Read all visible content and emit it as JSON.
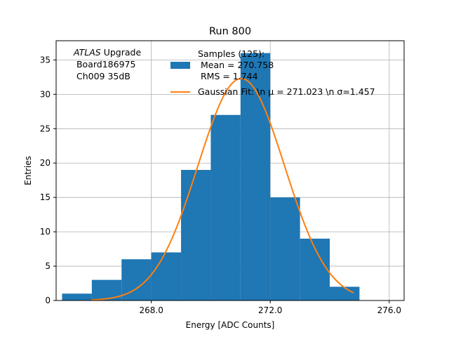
{
  "chart_data": {
    "type": "bar",
    "title": "Run 800",
    "xlabel": "Energy [ADC Counts]",
    "ylabel": "Entries",
    "xlim": [
      264.8,
      276.5
    ],
    "ylim": [
      0,
      37.8
    ],
    "grid": true,
    "x_ticks": [
      {
        "value": 268,
        "label": "268.0"
      },
      {
        "value": 272,
        "label": "272.0"
      },
      {
        "value": 276,
        "label": "276.0"
      }
    ],
    "y_ticks": [
      {
        "value": 0,
        "label": "0"
      },
      {
        "value": 5,
        "label": "5"
      },
      {
        "value": 10,
        "label": "10"
      },
      {
        "value": 15,
        "label": "15"
      },
      {
        "value": 20,
        "label": "20"
      },
      {
        "value": 25,
        "label": "25"
      },
      {
        "value": 30,
        "label": "30"
      },
      {
        "value": 35,
        "label": "35"
      }
    ],
    "histogram": {
      "name": "Samples (125):",
      "color": "#1f77b4",
      "bins": [
        {
          "x0": 265,
          "x1": 266,
          "count": 1
        },
        {
          "x0": 266,
          "x1": 267,
          "count": 3
        },
        {
          "x0": 267,
          "x1": 268,
          "count": 6
        },
        {
          "x0": 268,
          "x1": 269,
          "count": 7
        },
        {
          "x0": 269,
          "x1": 270,
          "count": 19
        },
        {
          "x0": 270,
          "x1": 271,
          "count": 27
        },
        {
          "x0": 271,
          "x1": 272,
          "count": 36
        },
        {
          "x0": 272,
          "x1": 273,
          "count": 15
        },
        {
          "x0": 273,
          "x1": 274,
          "count": 9
        },
        {
          "x0": 274,
          "x1": 275,
          "count": 2
        }
      ]
    },
    "fit": {
      "name": "Gaussian Fit: \\n $\\mu$ = 271.023 \\n $\\sigma$=1.457",
      "color": "#ff7f0e",
      "function": "gaussian",
      "mu": 271.023,
      "sigma": 1.457,
      "amplitude": 32.3,
      "x_range": [
        266,
        274.8
      ]
    },
    "legend": {
      "placement": "top-right",
      "entries": [
        {
          "kind": "patch",
          "color": "#1f77b4",
          "lines": [
            "Samples (125):",
            " Mean = 270.758",
            " RMS = 1.744"
          ]
        },
        {
          "kind": "line",
          "color": "#ff7f0e",
          "lines": [
            "Gaussian Fit: \\n μ = 271.023 \\n σ=1.457"
          ]
        }
      ]
    },
    "annotation": {
      "experiment": "ATLAS",
      "experiment_suffix": " Upgrade",
      "lines": [
        " Board186975",
        " Ch009 35dB"
      ]
    }
  }
}
